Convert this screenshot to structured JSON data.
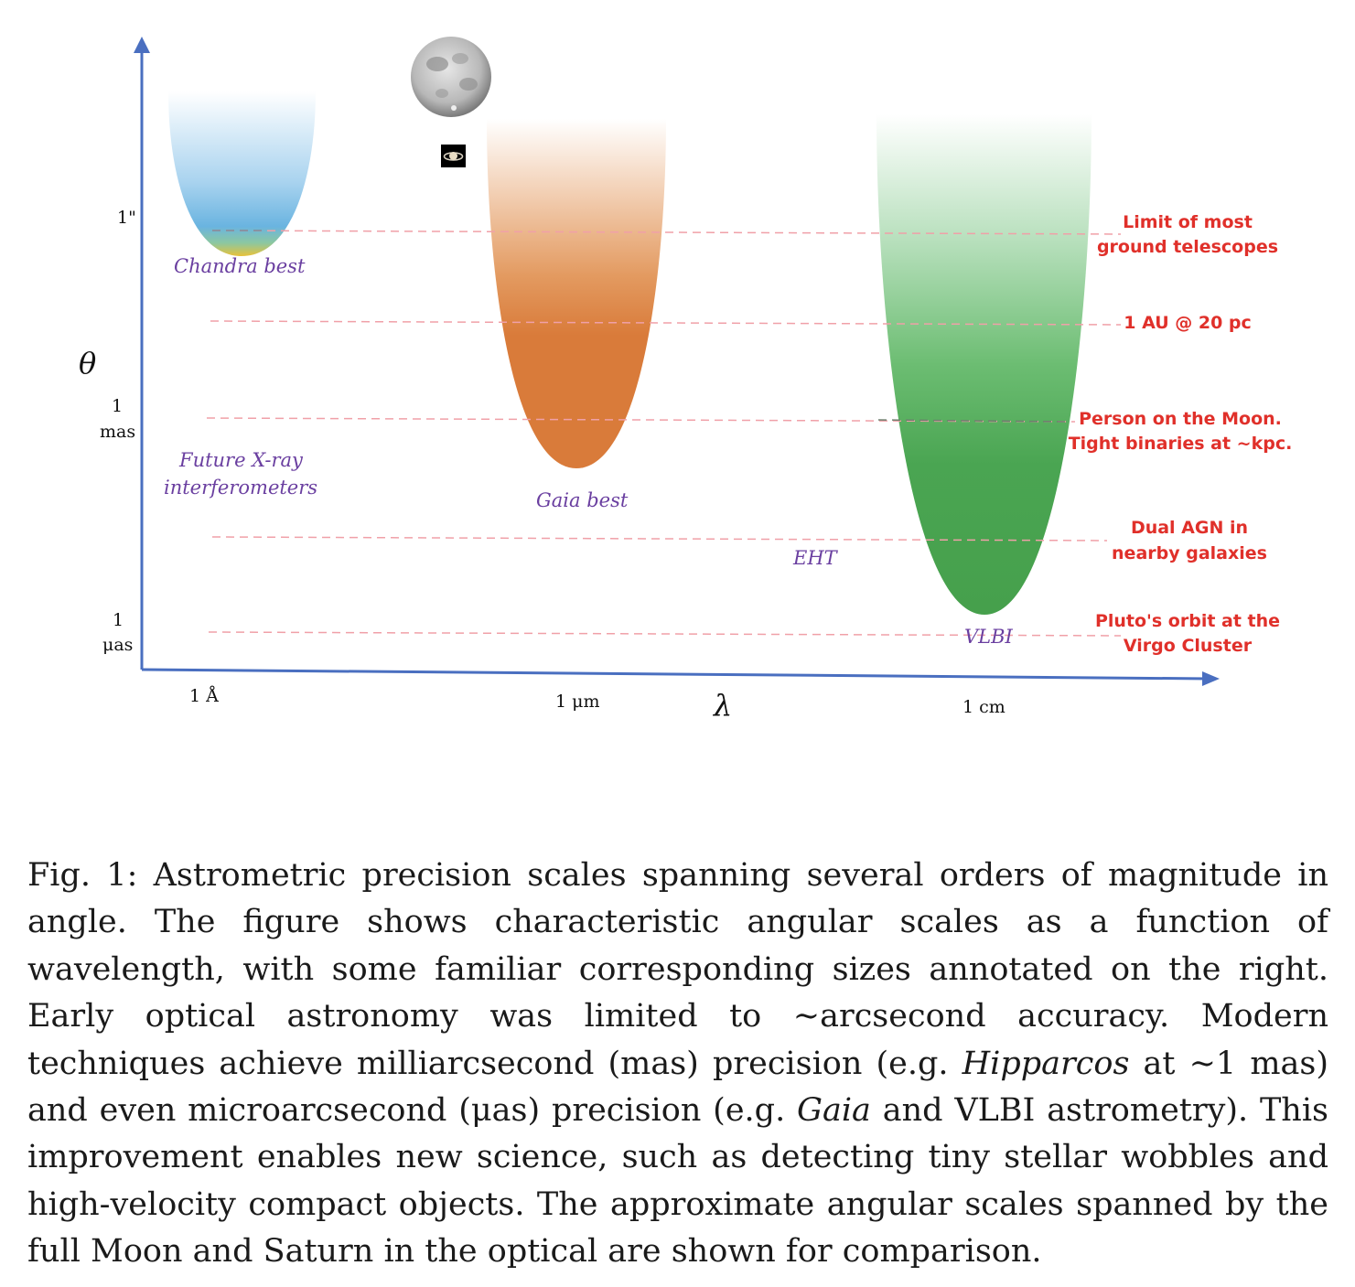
{
  "figure": {
    "axes": {
      "y_symbol": "θ",
      "x_symbol": "λ",
      "y_ticks": [
        {
          "line1": "1\"",
          "line2": ""
        },
        {
          "line1": "1",
          "line2": "mas"
        },
        {
          "line1": "1",
          "line2": "μas"
        }
      ],
      "x_ticks": [
        "1 Å",
        "1 μm",
        "1 cm"
      ]
    },
    "regions": [
      {
        "label": "Chandra best",
        "color": "#6ab4e0"
      },
      {
        "label": "Gaia best",
        "color": "#d97b3a"
      },
      {
        "label": "VLBI",
        "color": "#46a04c"
      }
    ],
    "other_labels": {
      "future_xray_1": "Future X-ray",
      "future_xray_2": "interferometers",
      "eht": "EHT"
    },
    "scale_annotations": [
      {
        "line1": "Limit of most",
        "line2": "ground telescopes"
      },
      {
        "line1": "1 AU @ 20 pc",
        "line2": ""
      },
      {
        "line1": "Person on the Moon.",
        "line2": "Tight binaries at ~kpc."
      },
      {
        "line1": "Dual AGN in",
        "line2": "nearby galaxies"
      },
      {
        "line1": "Pluto's orbit at the",
        "line2": "Virgo Cluster"
      }
    ],
    "icons": [
      "moon-icon",
      "saturn-icon"
    ],
    "colors": {
      "axis": "#4a6fc0",
      "annotation": "#e0302a",
      "region_label": "#6a3fa0",
      "guide_line": "#f0a0a8"
    }
  },
  "caption": {
    "prefix": "Fig. 1: Astrometric precision scales spanning several orders of magnitude in angle. The figure shows characteristic angular scales as a function of wavelength, with some familiar corresponding sizes annotated on the right. Early optical astronomy was limited to ∼arcsecond accuracy. Modern techniques achieve milliarcsecond (mas) precision (e.g. ",
    "italic1": "Hipparcos",
    "mid1": " at ∼1 mas) and even microarcsecond (μas) precision (e.g. ",
    "italic2": "Gaia",
    "suffix": " and VLBI astrometry). This improvement enables new science, such as detecting tiny stellar wobbles and high-velocity compact objects. The approximate angular scales spanned by the full Moon and Saturn in the optical are shown for comparison."
  }
}
